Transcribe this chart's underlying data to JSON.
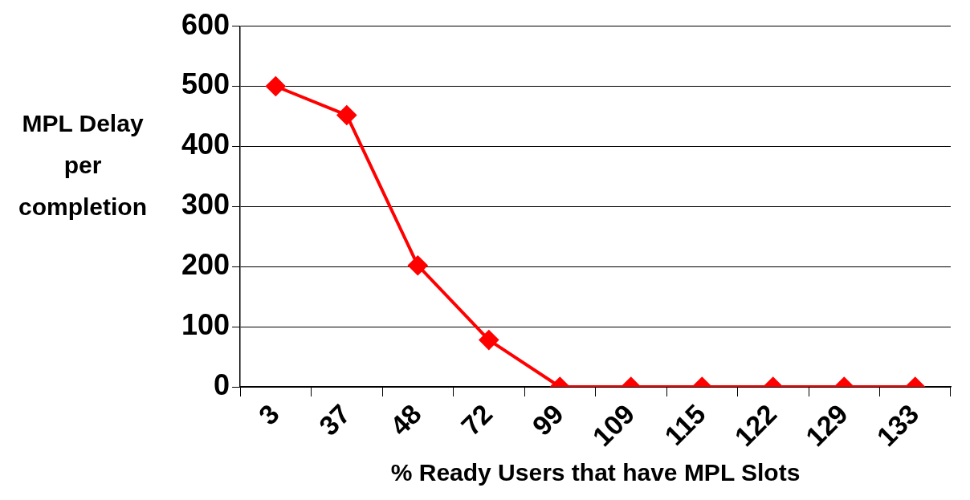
{
  "chart_data": {
    "type": "line",
    "xlabel": "% Ready Users that have MPL Slots",
    "ylabel": "MPL Delay per completion",
    "categories": [
      "3",
      "37",
      "48",
      "72",
      "99",
      "109",
      "115",
      "122",
      "129",
      "133"
    ],
    "series": [
      {
        "color": "#ff0000",
        "values": [
          500,
          452,
          202,
          78,
          0,
          0,
          0,
          0,
          0,
          0
        ]
      }
    ],
    "ylim": [
      0,
      600
    ],
    "yticks": [
      0,
      100,
      200,
      300,
      400,
      500,
      600
    ],
    "grid": "y",
    "legend": false,
    "marker": "diamond",
    "line_style": "solid"
  }
}
